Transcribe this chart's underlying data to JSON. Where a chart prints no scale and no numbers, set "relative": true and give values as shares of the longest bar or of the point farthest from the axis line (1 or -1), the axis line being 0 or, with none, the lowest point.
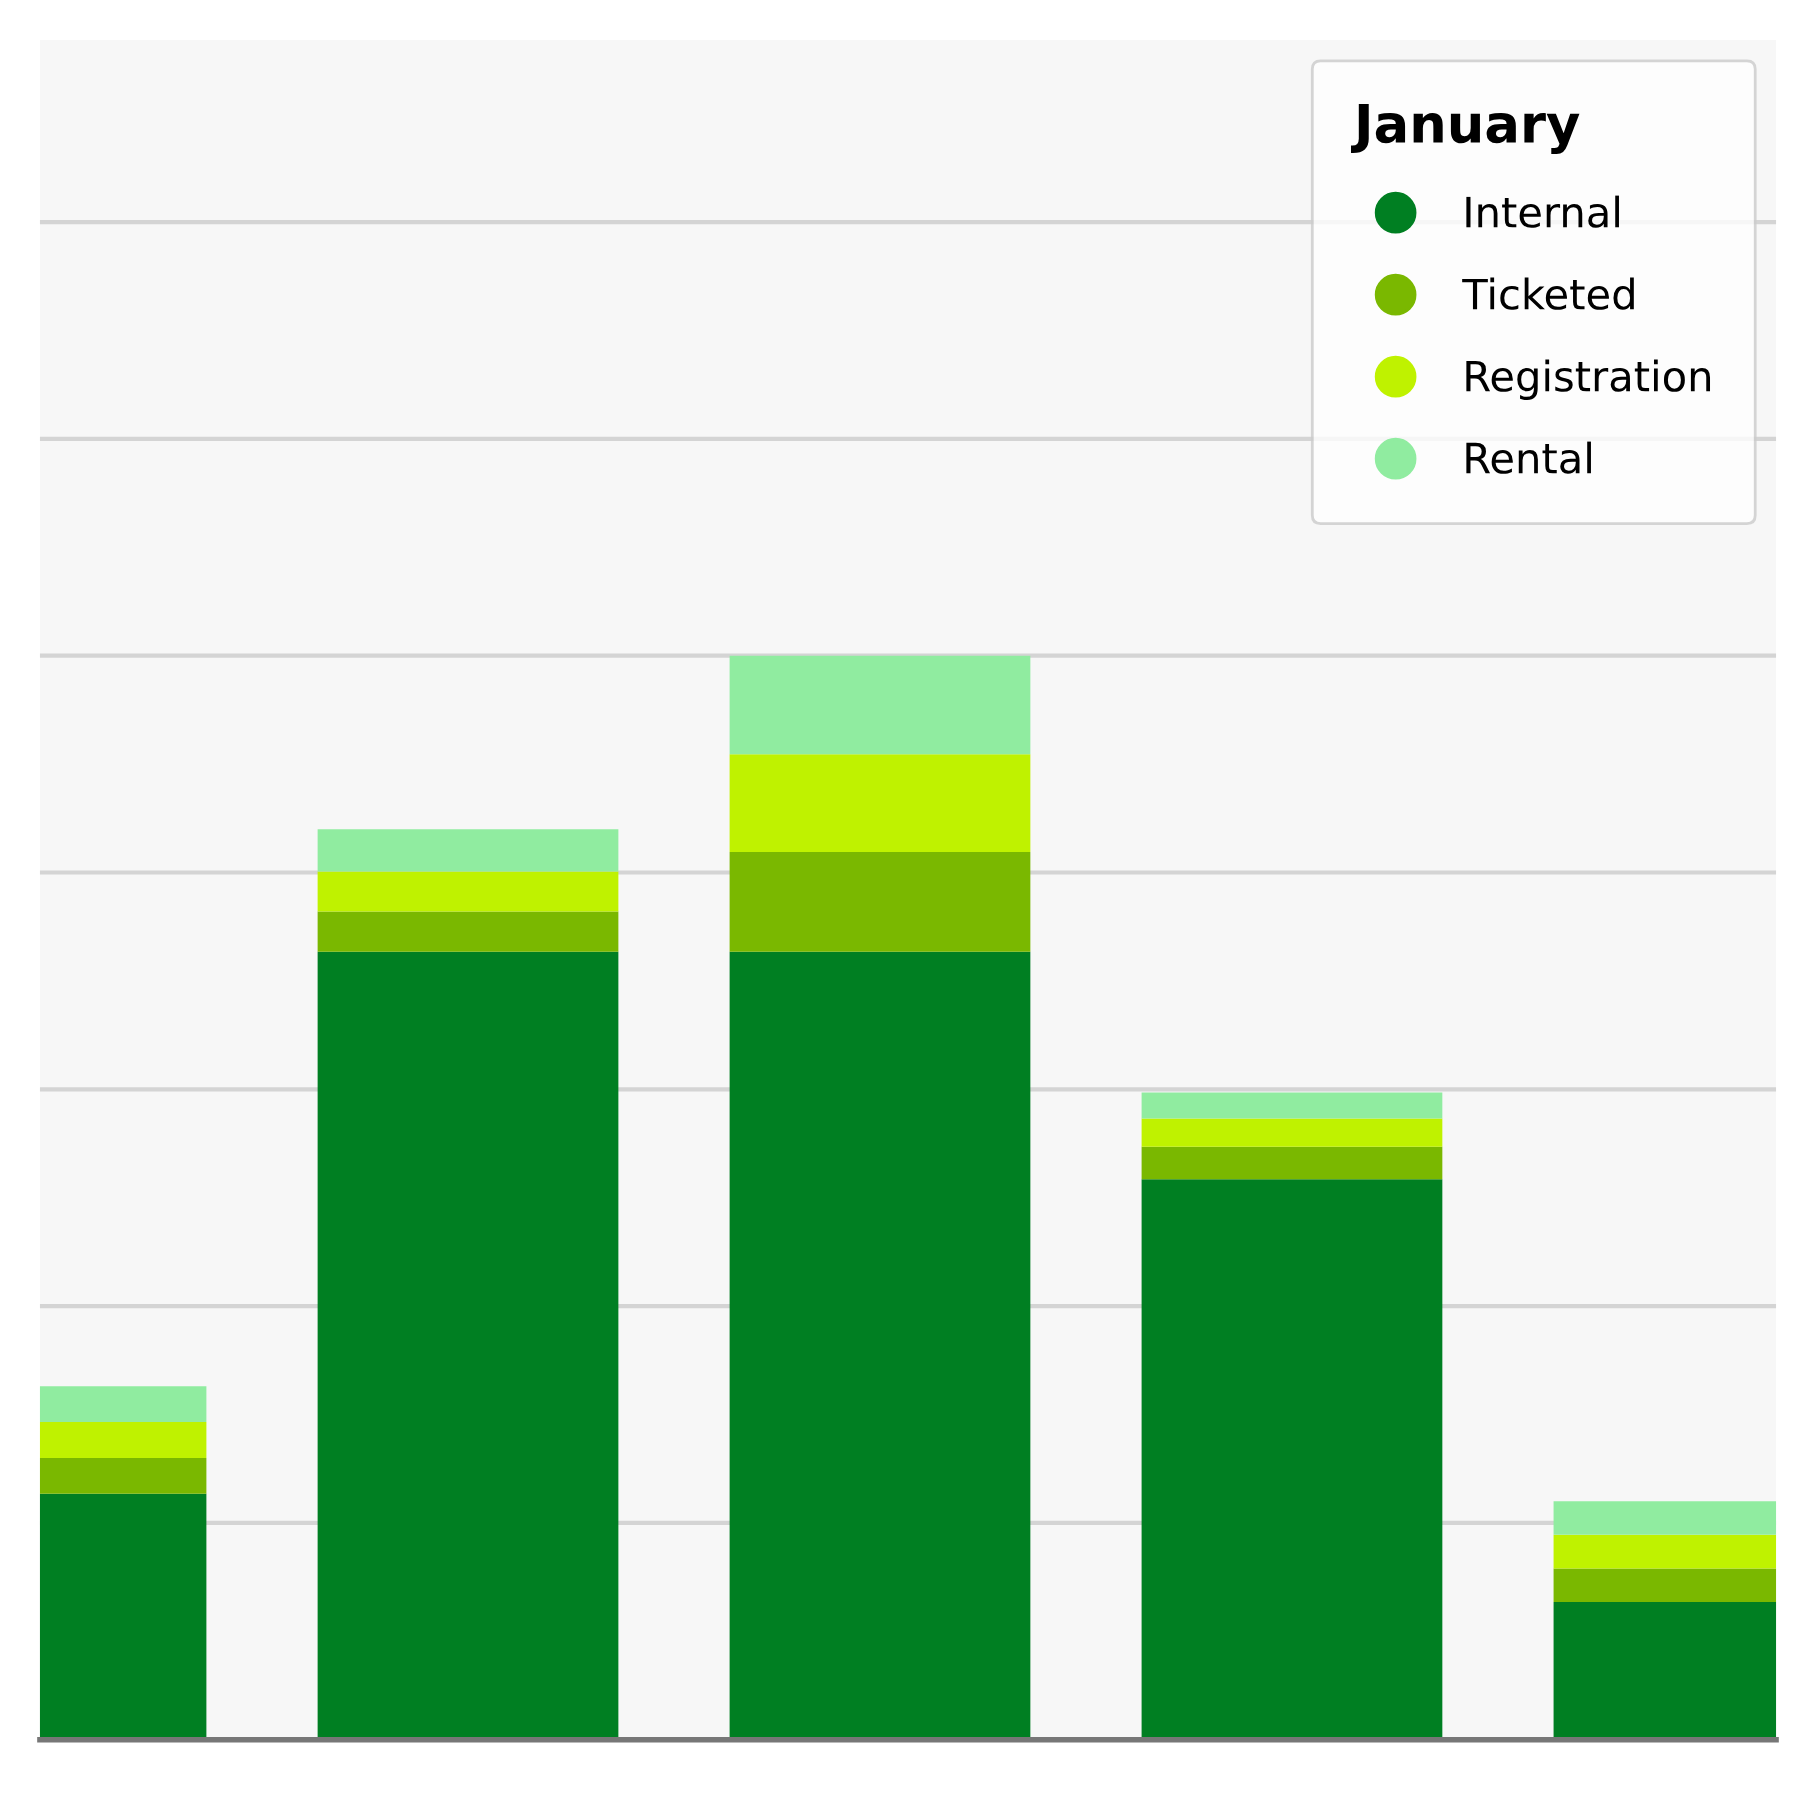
{
  "chart_data": {
    "type": "bar",
    "stacked": true,
    "relative": true,
    "categories": [
      null,
      null,
      null,
      null,
      null
    ],
    "legend_title": "January",
    "legend": "top right",
    "grid": "y",
    "marker": "circle",
    "series": [
      {
        "name": "Internal",
        "color": "#007f22",
        "values": [
          0.227,
          0.727,
          0.727,
          0.517,
          0.127
        ]
      },
      {
        "name": "Ticketed",
        "color": "#7ab800",
        "values": [
          0.033,
          0.037,
          0.092,
          0.03,
          0.031
        ]
      },
      {
        "name": "Registration",
        "color": "#bff200",
        "values": [
          0.033,
          0.037,
          0.09,
          0.026,
          0.031
        ]
      },
      {
        "name": "Rental",
        "color": "#90eca0",
        "values": [
          0.033,
          0.039,
          0.091,
          0.024,
          0.031
        ]
      }
    ]
  }
}
